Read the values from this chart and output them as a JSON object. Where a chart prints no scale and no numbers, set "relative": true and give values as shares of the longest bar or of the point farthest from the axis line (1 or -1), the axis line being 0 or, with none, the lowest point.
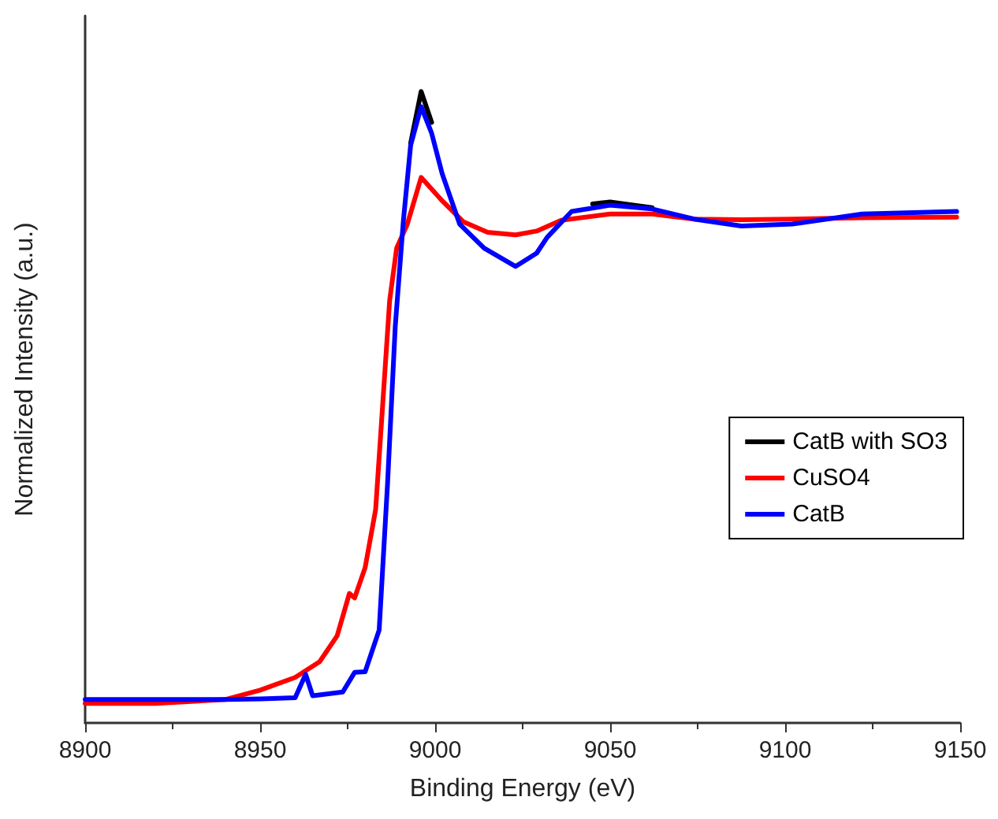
{
  "chart_data": {
    "type": "line",
    "relative": true,
    "xlabel": "Binding Energy (eV)",
    "ylabel": "Normalized Intensity (a.u.)",
    "xlim": [
      8900,
      9150
    ],
    "xticks": [
      8900,
      8950,
      9000,
      9050,
      9100,
      9150
    ],
    "grid": false,
    "legend": "right",
    "marker": "none",
    "line_style": "solid",
    "series": [
      {
        "name": "CatB with SO3",
        "color": "#000000",
        "x": [
          8993,
          8996,
          8999,
          9025,
          9045,
          9050,
          9062
        ],
        "values": [
          0.918,
          1,
          0.951,
          null,
          0.822,
          0.825,
          0.816
        ]
      },
      {
        "name": "CuSO4",
        "color": "#ff0000",
        "x": [
          8900,
          8920,
          8940,
          8950,
          8960,
          8967,
          8972,
          8975.5,
          8977,
          8980,
          8983,
          8985,
          8987,
          8989,
          8992,
          8996,
          9002,
          9008,
          9015,
          9023,
          9029,
          9036,
          9050,
          9062,
          9074,
          9087.5,
          9102,
          9122,
          9149
        ],
        "values": [
          0.031,
          0.031,
          0.037,
          0.052,
          0.072,
          0.097,
          0.138,
          0.205,
          0.198,
          0.246,
          0.338,
          0.503,
          0.669,
          0.752,
          0.789,
          0.864,
          0.827,
          0.794,
          0.777,
          0.773,
          0.779,
          0.796,
          0.806,
          0.806,
          0.798,
          0.797,
          0.798,
          0.8,
          0.801
        ]
      },
      {
        "name": "CatB",
        "color": "#0000ff",
        "x": [
          8900,
          8920,
          8940,
          8950,
          8960,
          8963,
          8965,
          8973.6,
          8977,
          8980,
          8984,
          8986.4,
          8988.6,
          8990.9,
          8993,
          8996,
          8999,
          9002,
          9007,
          9014,
          9023,
          9029,
          9032,
          9039,
          9050,
          9062,
          9074,
          9087.5,
          9102,
          9122,
          9149
        ],
        "values": [
          0.037,
          0.037,
          0.037,
          0.038,
          0.04,
          0.077,
          0.043,
          0.049,
          0.08,
          0.081,
          0.147,
          0.379,
          0.628,
          0.794,
          0.915,
          0.976,
          0.934,
          0.87,
          0.79,
          0.752,
          0.723,
          0.744,
          0.769,
          0.81,
          0.82,
          0.814,
          0.798,
          0.787,
          0.79,
          0.806,
          0.81
        ]
      }
    ]
  }
}
